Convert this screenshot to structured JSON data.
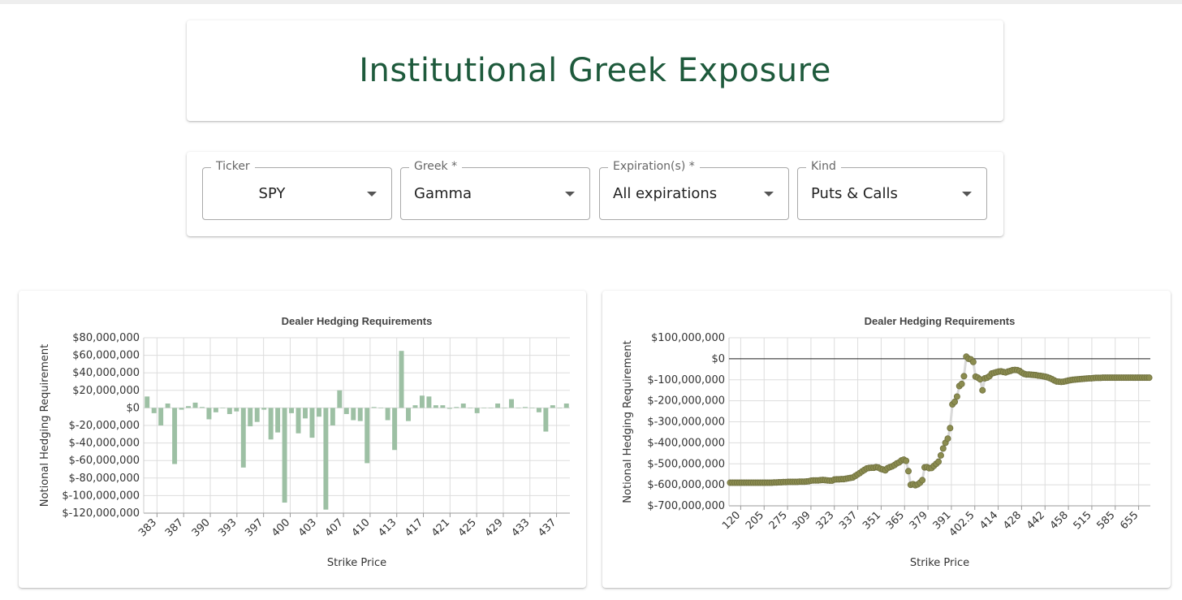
{
  "page_title": "Institutional Greek Exposure",
  "controls": [
    {
      "label": "Ticker",
      "value": "SPY"
    },
    {
      "label": "Greek *",
      "value": "Gamma"
    },
    {
      "label": "Expiration(s) *",
      "value": "All expirations"
    },
    {
      "label": "Kind",
      "value": "Puts & Calls"
    }
  ],
  "colors": {
    "title": "#1e5a3c",
    "bars": "#9dc0a4",
    "points": "#8b8c4f"
  },
  "chart_data": [
    {
      "type": "bar",
      "title": "Dealer Hedging Requirements",
      "xlabel": "Strike Price",
      "ylabel": "Notional Hedging Requirement",
      "ylim": [
        -120000000,
        80000000
      ],
      "yticks": [
        80000000,
        60000000,
        40000000,
        20000000,
        0,
        -20000000,
        -40000000,
        -60000000,
        -80000000,
        -100000000,
        -120000000
      ],
      "ytick_labels": [
        "$80,000,000",
        "$60,000,000",
        "$40,000,000",
        "$20,000,000",
        "$0",
        "$-20,000,000",
        "$-40,000,000",
        "$-60,000,000",
        "$-80,000,000",
        "$-100,000,000",
        "$-120,000,000"
      ],
      "xtick_labels": [
        "383",
        "387",
        "390",
        "393",
        "397",
        "400",
        "403",
        "407",
        "410",
        "413",
        "417",
        "421",
        "425",
        "429",
        "433",
        "437"
      ],
      "grid": true,
      "values": [
        13000000,
        -6000000,
        -20000000,
        5000000,
        -64000000,
        -2000000,
        2000000,
        6000000,
        1000000,
        -13000000,
        -5000000,
        0,
        -7000000,
        -4000000,
        -68000000,
        -21000000,
        -16000000,
        -2000000,
        -36000000,
        -28000000,
        -108000000,
        -6000000,
        -29000000,
        -12000000,
        -34000000,
        -10000000,
        -116000000,
        -20000000,
        20000000,
        -7000000,
        -14000000,
        -15000000,
        -63000000,
        1000000,
        0,
        -14000000,
        -48000000,
        65000000,
        -15000000,
        3000000,
        14000000,
        13000000,
        3000000,
        3000000,
        -1000000,
        1000000,
        5000000,
        0,
        -6000000,
        0,
        0,
        5000000,
        0,
        10000000,
        0,
        1000000,
        0,
        -5000000,
        -27000000,
        3000000,
        0,
        5000000
      ]
    },
    {
      "type": "scatter",
      "title": "Dealer Hedging Requirements",
      "xlabel": "Strike Price",
      "ylabel": "Notional Hedging Requirement",
      "ylim": [
        -700000000,
        100000000
      ],
      "yticks": [
        100000000,
        0,
        -100000000,
        -200000000,
        -300000000,
        -400000000,
        -500000000,
        -600000000,
        -700000000
      ],
      "ytick_labels": [
        "$100,000,000",
        "$0",
        "$-100,000,000",
        "$-200,000,000",
        "$-300,000,000",
        "$-400,000,000",
        "$-500,000,000",
        "$-600,000,000",
        "$-700,000,000"
      ],
      "xtick_labels": [
        "120",
        "205",
        "275",
        "309",
        "323",
        "337",
        "351",
        "365",
        "379",
        "391",
        "402.5",
        "414",
        "428",
        "442",
        "458",
        "515",
        "585",
        "655"
      ],
      "grid": true,
      "zero_line": true,
      "values": [
        -590000000,
        -590000000,
        -590000000,
        -590000000,
        -590000000,
        -590000000,
        -590000000,
        -590000000,
        -590000000,
        -590000000,
        -590000000,
        -590000000,
        -590000000,
        -590000000,
        -590000000,
        -590000000,
        -590000000,
        -590000000,
        -590000000,
        -589000000,
        -589000000,
        -588000000,
        -588000000,
        -587000000,
        -587000000,
        -586000000,
        -586000000,
        -586000000,
        -586000000,
        -586000000,
        -585000000,
        -585000000,
        -585000000,
        -584000000,
        -583000000,
        -580000000,
        -579000000,
        -579000000,
        -579000000,
        -578000000,
        -577000000,
        -578000000,
        -579000000,
        -580000000,
        -580000000,
        -575000000,
        -574000000,
        -574000000,
        -573000000,
        -573000000,
        -571000000,
        -569000000,
        -567000000,
        -565000000,
        -558000000,
        -551000000,
        -544000000,
        -536000000,
        -529000000,
        -522000000,
        -520000000,
        -519000000,
        -519000000,
        -516000000,
        -518000000,
        -524000000,
        -527000000,
        -531000000,
        -521000000,
        -516000000,
        -512000000,
        -506000000,
        -498000000,
        -493000000,
        -484000000,
        -480000000,
        -486000000,
        -535000000,
        -600000000,
        -597000000,
        -602000000,
        -598000000,
        -590000000,
        -578000000,
        -517000000,
        -516000000,
        -521000000,
        -520000000,
        -510000000,
        -500000000,
        -490000000,
        -460000000,
        -427000000,
        -400000000,
        -380000000,
        -330000000,
        -217000000,
        -205000000,
        -180000000,
        -130000000,
        -120000000,
        -83000000,
        10000000,
        0,
        -3000000,
        -15000000,
        -85000000,
        -90000000,
        -98000000,
        -150000000,
        -93000000,
        -90000000,
        -83000000,
        -70000000,
        -67000000,
        -64000000,
        -61000000,
        -60000000,
        -63000000,
        -65000000,
        -61000000,
        -58000000,
        -54000000,
        -53000000,
        -54000000,
        -58000000,
        -66000000,
        -72000000,
        -75000000,
        -75000000,
        -76000000,
        -77000000,
        -78000000,
        -80000000,
        -81000000,
        -83000000,
        -85000000,
        -88000000,
        -92000000,
        -97000000,
        -103000000,
        -108000000,
        -109000000,
        -110000000,
        -109000000,
        -107000000,
        -104000000,
        -102000000,
        -100000000,
        -99000000,
        -98000000,
        -97000000,
        -96000000,
        -95000000,
        -94000000,
        -93000000,
        -93000000,
        -92000000,
        -91000000,
        -91000000,
        -91000000,
        -90000000,
        -90000000,
        -90000000,
        -90000000,
        -90000000,
        -90000000,
        -90000000,
        -90000000,
        -90000000,
        -90000000,
        -90000000,
        -90000000,
        -90000000,
        -90000000,
        -90000000,
        -90000000,
        -90000000,
        -90000000,
        -90000000,
        -90000000,
        -90000000
      ]
    }
  ]
}
